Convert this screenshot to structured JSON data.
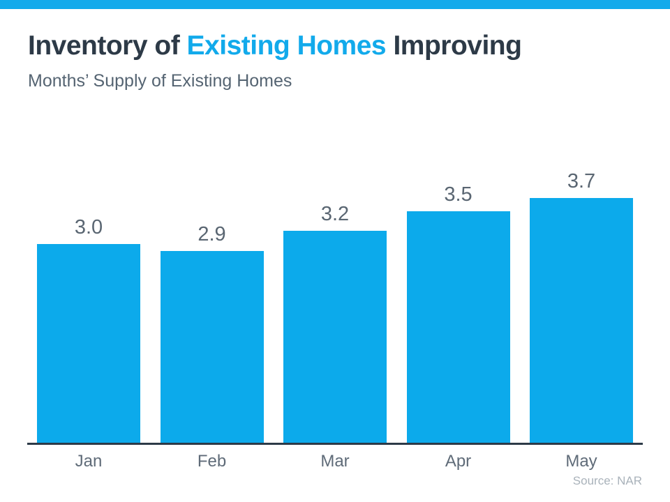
{
  "accent_color": "#12aaeb",
  "header": {
    "title_part1": "Inventory of ",
    "title_highlight": "Existing Homes",
    "title_part2": " Improving",
    "subtitle": "Months’ Supply of Existing Homes"
  },
  "chart_data": {
    "type": "bar",
    "title": "Inventory of Existing Homes Improving",
    "subtitle": "Months’ Supply of Existing Homes",
    "categories": [
      "Jan",
      "Feb",
      "Mar",
      "Apr",
      "May"
    ],
    "values": [
      3.0,
      2.9,
      3.2,
      3.5,
      3.7
    ],
    "value_labels": [
      "3.0",
      "2.9",
      "3.2",
      "3.5",
      "3.7"
    ],
    "xlabel": "",
    "ylabel": "",
    "ylim": [
      0,
      3.7
    ],
    "grid": false,
    "legend": false,
    "bar_color": "#0caaeb",
    "value_label_color": "#5a6672",
    "axis_line_color": "#2d3a47"
  },
  "footer": {
    "source": "Source: NAR"
  }
}
